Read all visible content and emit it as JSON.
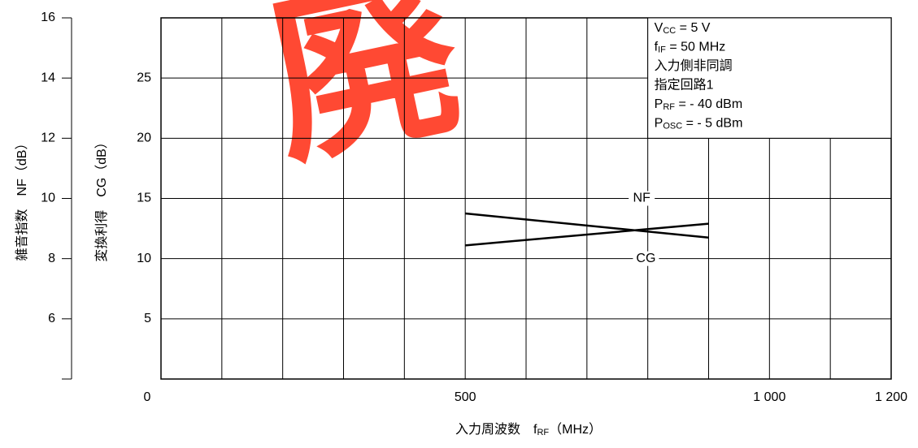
{
  "chart_data": {
    "type": "line",
    "watermark": "廃",
    "xlabel": {
      "main": "入力周波数　f",
      "sub": "RF",
      "rest": "（MHz）"
    },
    "ylabel": "雑音指数　NF（dB）",
    "y2label": "変換利得　CG（dB）",
    "conditions": [
      {
        "main": "V",
        "sub": "CC",
        "rest": " = 5 V"
      },
      {
        "main": "f",
        "sub": "IF",
        "rest": " = 50 MHz"
      },
      {
        "main": "入力側非同調",
        "sub": "",
        "rest": ""
      },
      {
        "main": "指定回路1",
        "sub": "",
        "rest": ""
      },
      {
        "main": "P",
        "sub": "RF",
        "rest": " =  - 40 dBm"
      },
      {
        "main": "P",
        "sub": "OSC",
        "rest": " =  - 5 dBm"
      }
    ],
    "xlim": [
      0,
      1200
    ],
    "xticks": [
      0,
      500,
      {
        "value": 1000,
        "label": "1 000"
      },
      {
        "value": 1200,
        "label": "1 200"
      }
    ],
    "xgrid": [
      100,
      200,
      300,
      400,
      500,
      600,
      700,
      800,
      900,
      1000,
      1100
    ],
    "ylim": [
      4,
      16
    ],
    "yticks": [
      6,
      8,
      10,
      12,
      14,
      16
    ],
    "y2lim": [
      0,
      30
    ],
    "y2ticks": [
      5,
      10,
      15,
      20,
      25
    ],
    "grid": true,
    "series": [
      {
        "name": "NF",
        "color": "#000000",
        "x": [
          500,
          900
        ],
        "values": [
          9.5,
          8.7
        ],
        "axis": "y",
        "label_x": 790
      },
      {
        "name": "CG",
        "color": "#000000",
        "x": [
          500,
          900
        ],
        "values": [
          11.1,
          12.9
        ],
        "axis": "y2",
        "label_x": 797
      }
    ]
  }
}
